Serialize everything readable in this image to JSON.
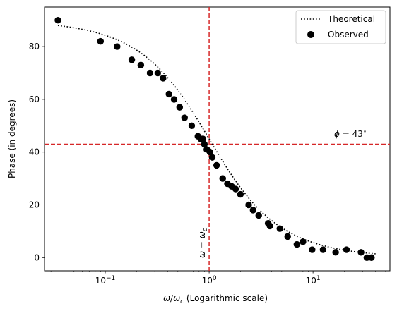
{
  "chart_data": {
    "type": "scatter",
    "xscale": "log",
    "xlim": [
      0.026,
      55
    ],
    "ylim": [
      -5,
      95
    ],
    "xlabel_parts": {
      "omega": "ω",
      "slash": "/",
      "omega_c": "ω",
      "sub_c": "c",
      "suffix": " (Logarithmic scale)"
    },
    "ylabel": "Phase (in degrees)",
    "x_ticks": [
      {
        "value": 0.1,
        "base": "10",
        "exp": "−1"
      },
      {
        "value": 1,
        "base": "10",
        "exp": "0"
      },
      {
        "value": 10,
        "base": "10",
        "exp": "1"
      }
    ],
    "y_ticks": [
      0,
      20,
      40,
      60,
      80
    ],
    "series": [
      {
        "name": "Theoretical",
        "style": "dotted-line",
        "color": "#000000",
        "formula": "90 - arctan(x) in degrees"
      },
      {
        "name": "Observed",
        "style": "markers",
        "color": "#000000",
        "points": [
          [
            0.035,
            90
          ],
          [
            0.09,
            82
          ],
          [
            0.13,
            80
          ],
          [
            0.18,
            75
          ],
          [
            0.22,
            73
          ],
          [
            0.27,
            70
          ],
          [
            0.32,
            70
          ],
          [
            0.36,
            68
          ],
          [
            0.41,
            62
          ],
          [
            0.46,
            60
          ],
          [
            0.52,
            57
          ],
          [
            0.58,
            53
          ],
          [
            0.68,
            50
          ],
          [
            0.78,
            46
          ],
          [
            0.83,
            45
          ],
          [
            0.87,
            45
          ],
          [
            0.9,
            43
          ],
          [
            0.95,
            41
          ],
          [
            1.02,
            40
          ],
          [
            1.07,
            38
          ],
          [
            1.18,
            35
          ],
          [
            1.35,
            30
          ],
          [
            1.5,
            28
          ],
          [
            1.65,
            27
          ],
          [
            1.8,
            26
          ],
          [
            2.0,
            24
          ],
          [
            2.4,
            20
          ],
          [
            2.65,
            18
          ],
          [
            3.0,
            16
          ],
          [
            3.7,
            13
          ],
          [
            3.85,
            12
          ],
          [
            4.8,
            11
          ],
          [
            5.7,
            8
          ],
          [
            7.0,
            5
          ],
          [
            8.0,
            6
          ],
          [
            9.8,
            3
          ],
          [
            12.5,
            3
          ],
          [
            16.5,
            2
          ],
          [
            21,
            3
          ],
          [
            29,
            2
          ],
          [
            33,
            0
          ],
          [
            36.5,
            0
          ]
        ]
      }
    ],
    "reference_lines": [
      {
        "orientation": "horizontal",
        "value": 43,
        "color": "#d62728",
        "style": "dashed"
      },
      {
        "orientation": "vertical",
        "value": 1,
        "color": "#d62728",
        "style": "dashed"
      }
    ],
    "annotations": {
      "phi": {
        "symbol": "ϕ",
        "eq": " = 43",
        "deg": "∘"
      },
      "omega": {
        "lhs": "ω",
        "eq": " = ",
        "rhs": "ω",
        "sub": "c"
      }
    },
    "legend": {
      "position": "top-right"
    },
    "grid": false
  }
}
